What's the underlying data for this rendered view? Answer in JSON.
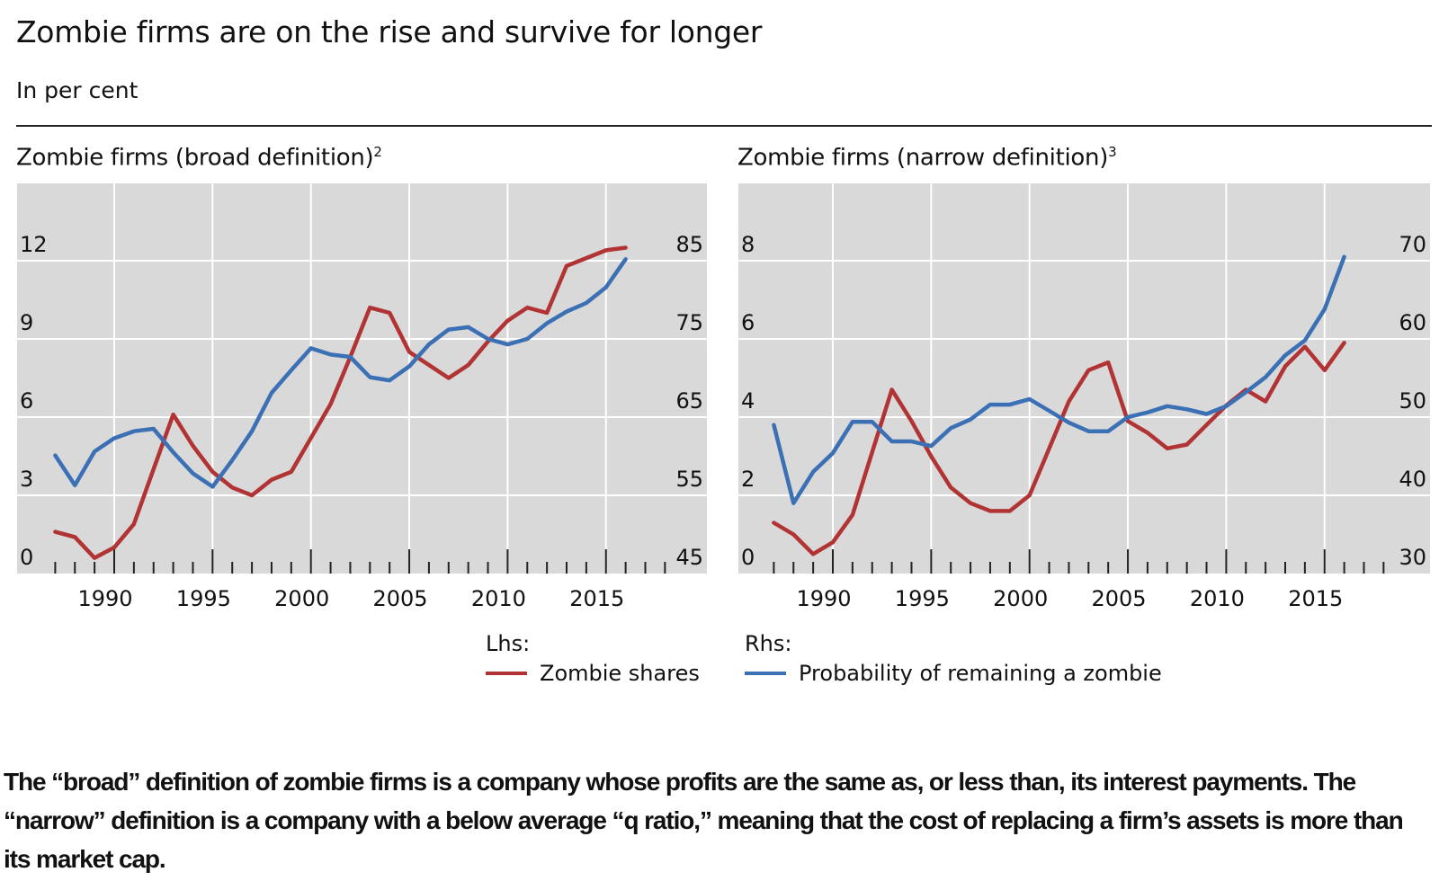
{
  "title": "Zombie firms are on the rise and survive for longer",
  "subtitle": "In per cent",
  "legend": {
    "lhs_label": "Lhs:",
    "rhs_label": "Rhs:",
    "lhs_series": "Zombie shares",
    "rhs_series": "Probability of remaining a zombie",
    "lhs_color": "#b23333",
    "rhs_color": "#3b70b5"
  },
  "caption": "The “broad” definition of zombie firms is a company whose profits are the same as, or less than, its interest payments. The “narrow” definition is a company with a below average “q ratio,” meaning that the cost of replacing a firm’s assets is more than its market cap.",
  "chart_data": [
    {
      "type": "line",
      "title": "Zombie firms (broad definition)",
      "title_footnote": "2",
      "grid": true,
      "x_ticks": [
        "1990",
        "1995",
        "2000",
        "2005",
        "2010",
        "2015"
      ],
      "xlim": [
        1986,
        2018
      ],
      "y_left": {
        "lim": [
          0,
          12
        ],
        "ticks": [
          "0",
          "3",
          "6",
          "9",
          "12"
        ]
      },
      "y_right": {
        "lim": [
          45,
          85
        ],
        "ticks": [
          "45",
          "55",
          "65",
          "75",
          "85"
        ]
      },
      "x": [
        1987,
        1988,
        1989,
        1990,
        1991,
        1992,
        1993,
        1994,
        1995,
        1996,
        1997,
        1998,
        1999,
        2000,
        2001,
        2002,
        2003,
        2004,
        2005,
        2006,
        2007,
        2008,
        2009,
        2010,
        2011,
        2012,
        2013,
        2014,
        2015,
        2016
      ],
      "series": [
        {
          "name": "Zombie shares",
          "axis": "left",
          "color": "#b23333",
          "values": [
            1.6,
            1.4,
            0.6,
            1.0,
            1.9,
            4.0,
            6.1,
            4.9,
            3.9,
            3.3,
            3.0,
            3.6,
            3.9,
            5.2,
            6.5,
            8.3,
            10.2,
            10.0,
            8.5,
            8.0,
            7.5,
            8.0,
            8.9,
            9.7,
            10.2,
            10.0,
            11.8,
            12.1,
            12.4,
            12.5
          ]
        },
        {
          "name": "Probability of remaining a zombie",
          "axis": "right",
          "color": "#3b70b5",
          "values": [
            60.1,
            56.3,
            60.6,
            62.3,
            63.2,
            63.5,
            60.5,
            57.8,
            56.1,
            59.5,
            63.2,
            68.1,
            71.0,
            73.8,
            73.0,
            72.7,
            70.1,
            69.7,
            71.5,
            74.3,
            76.2,
            76.5,
            75.0,
            74.3,
            75.0,
            77.0,
            78.5,
            79.6,
            81.6,
            85.2
          ]
        }
      ]
    },
    {
      "type": "line",
      "title": "Zombie firms (narrow definition)",
      "title_footnote": "3",
      "grid": true,
      "x_ticks": [
        "1990",
        "1995",
        "2000",
        "2005",
        "2010",
        "2015"
      ],
      "xlim": [
        1986,
        2018
      ],
      "y_left": {
        "lim": [
          0,
          8
        ],
        "ticks": [
          "0",
          "2",
          "4",
          "6",
          "8"
        ]
      },
      "y_right": {
        "lim": [
          30,
          70
        ],
        "ticks": [
          "30",
          "40",
          "50",
          "60",
          "70"
        ]
      },
      "x": [
        1987,
        1988,
        1989,
        1990,
        1991,
        1992,
        1993,
        1994,
        1995,
        1996,
        1997,
        1998,
        1999,
        2000,
        2001,
        2002,
        2003,
        2004,
        2005,
        2006,
        2007,
        2008,
        2009,
        2010,
        2011,
        2012,
        2013,
        2014,
        2015,
        2016
      ],
      "series": [
        {
          "name": "Zombie shares",
          "axis": "left",
          "color": "#b23333",
          "values": [
            1.3,
            1.0,
            0.5,
            0.8,
            1.5,
            3.1,
            4.7,
            3.9,
            3.0,
            2.2,
            1.8,
            1.6,
            1.6,
            2.0,
            3.2,
            4.4,
            5.2,
            5.4,
            3.9,
            3.6,
            3.2,
            3.3,
            3.8,
            4.3,
            4.7,
            4.4,
            5.3,
            5.8,
            5.2,
            5.9
          ]
        },
        {
          "name": "Probability of remaining a zombie",
          "axis": "right",
          "color": "#3b70b5",
          "values": [
            49.0,
            39.0,
            43.0,
            45.4,
            49.4,
            49.4,
            46.9,
            46.9,
            46.3,
            48.6,
            49.7,
            51.6,
            51.6,
            52.3,
            50.8,
            49.3,
            48.2,
            48.2,
            50.0,
            50.6,
            51.4,
            51.0,
            50.4,
            51.4,
            53.2,
            55.1,
            57.9,
            59.8,
            63.8,
            70.5
          ]
        }
      ]
    }
  ]
}
